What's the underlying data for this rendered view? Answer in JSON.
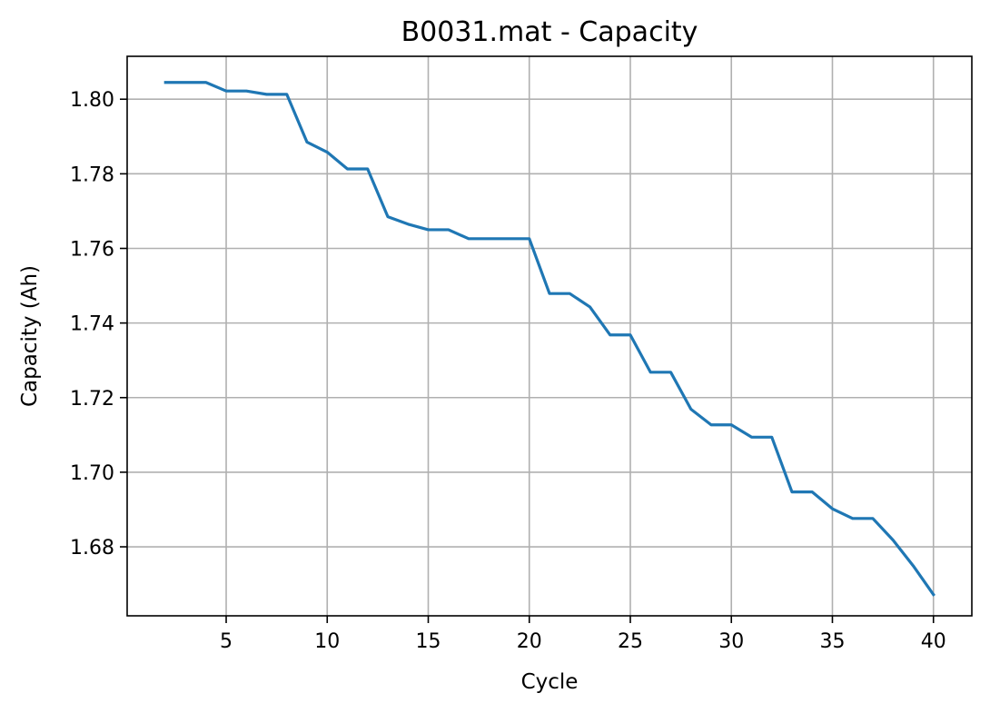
{
  "chart_data": {
    "type": "line",
    "title": "B0031.mat - Capacity",
    "xlabel": "Cycle",
    "ylabel": "Capacity (Ah)",
    "xlim": [
      0.1,
      41.9
    ],
    "ylim": [
      1.6615,
      1.8115
    ],
    "xticks": [
      5,
      10,
      15,
      20,
      25,
      30,
      35,
      40
    ],
    "yticks": [
      1.68,
      1.7,
      1.72,
      1.74,
      1.76,
      1.78,
      1.8
    ],
    "xtick_labels": [
      "5",
      "10",
      "15",
      "20",
      "25",
      "30",
      "35",
      "40"
    ],
    "ytick_labels": [
      "1.68",
      "1.70",
      "1.72",
      "1.74",
      "1.76",
      "1.78",
      "1.80"
    ],
    "grid": true,
    "series": [
      {
        "color": "#1f77b4",
        "x": [
          2,
          3,
          4,
          5,
          6,
          7,
          8,
          9,
          10,
          11,
          12,
          13,
          14,
          15,
          16,
          17,
          18,
          19,
          20,
          21,
          22,
          23,
          24,
          25,
          26,
          27,
          28,
          29,
          30,
          31,
          32,
          33,
          34,
          35,
          36,
          37,
          38,
          39,
          40
        ],
        "y": [
          1.8045,
          1.8045,
          1.8045,
          1.8022,
          1.8022,
          1.8013,
          1.8013,
          1.7885,
          1.7858,
          1.7813,
          1.7813,
          1.7685,
          1.7665,
          1.765,
          1.765,
          1.7626,
          1.7626,
          1.7626,
          1.7626,
          1.7479,
          1.7479,
          1.7443,
          1.7368,
          1.7368,
          1.7268,
          1.7268,
          1.7169,
          1.7127,
          1.7127,
          1.7094,
          1.7094,
          1.6947,
          1.6947,
          1.6902,
          1.6876,
          1.6876,
          1.6818,
          1.6749,
          1.6672
        ]
      }
    ]
  }
}
